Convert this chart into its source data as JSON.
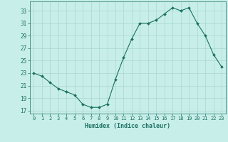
{
  "x": [
    0,
    1,
    2,
    3,
    4,
    5,
    6,
    7,
    8,
    9,
    10,
    11,
    12,
    13,
    14,
    15,
    16,
    17,
    18,
    19,
    20,
    21,
    22,
    23
  ],
  "y": [
    23,
    22.5,
    21.5,
    20.5,
    20,
    19.5,
    18,
    17.5,
    17.5,
    18,
    22,
    25.5,
    28.5,
    31,
    31,
    31.5,
    32.5,
    33.5,
    33,
    33.5,
    31,
    29,
    26,
    24
  ],
  "xlabel": "Humidex (Indice chaleur)",
  "line_color": "#1a7060",
  "bg_color": "#c8eeea",
  "grid_color": "#a8d8d0",
  "tick_color": "#1a7060",
  "ylim": [
    16.5,
    34.5
  ],
  "xlim": [
    -0.5,
    23.5
  ],
  "yticks": [
    17,
    19,
    21,
    23,
    25,
    27,
    29,
    31,
    33
  ],
  "xticks": [
    0,
    1,
    2,
    3,
    4,
    5,
    6,
    7,
    8,
    9,
    10,
    11,
    12,
    13,
    14,
    15,
    16,
    17,
    18,
    19,
    20,
    21,
    22,
    23
  ]
}
